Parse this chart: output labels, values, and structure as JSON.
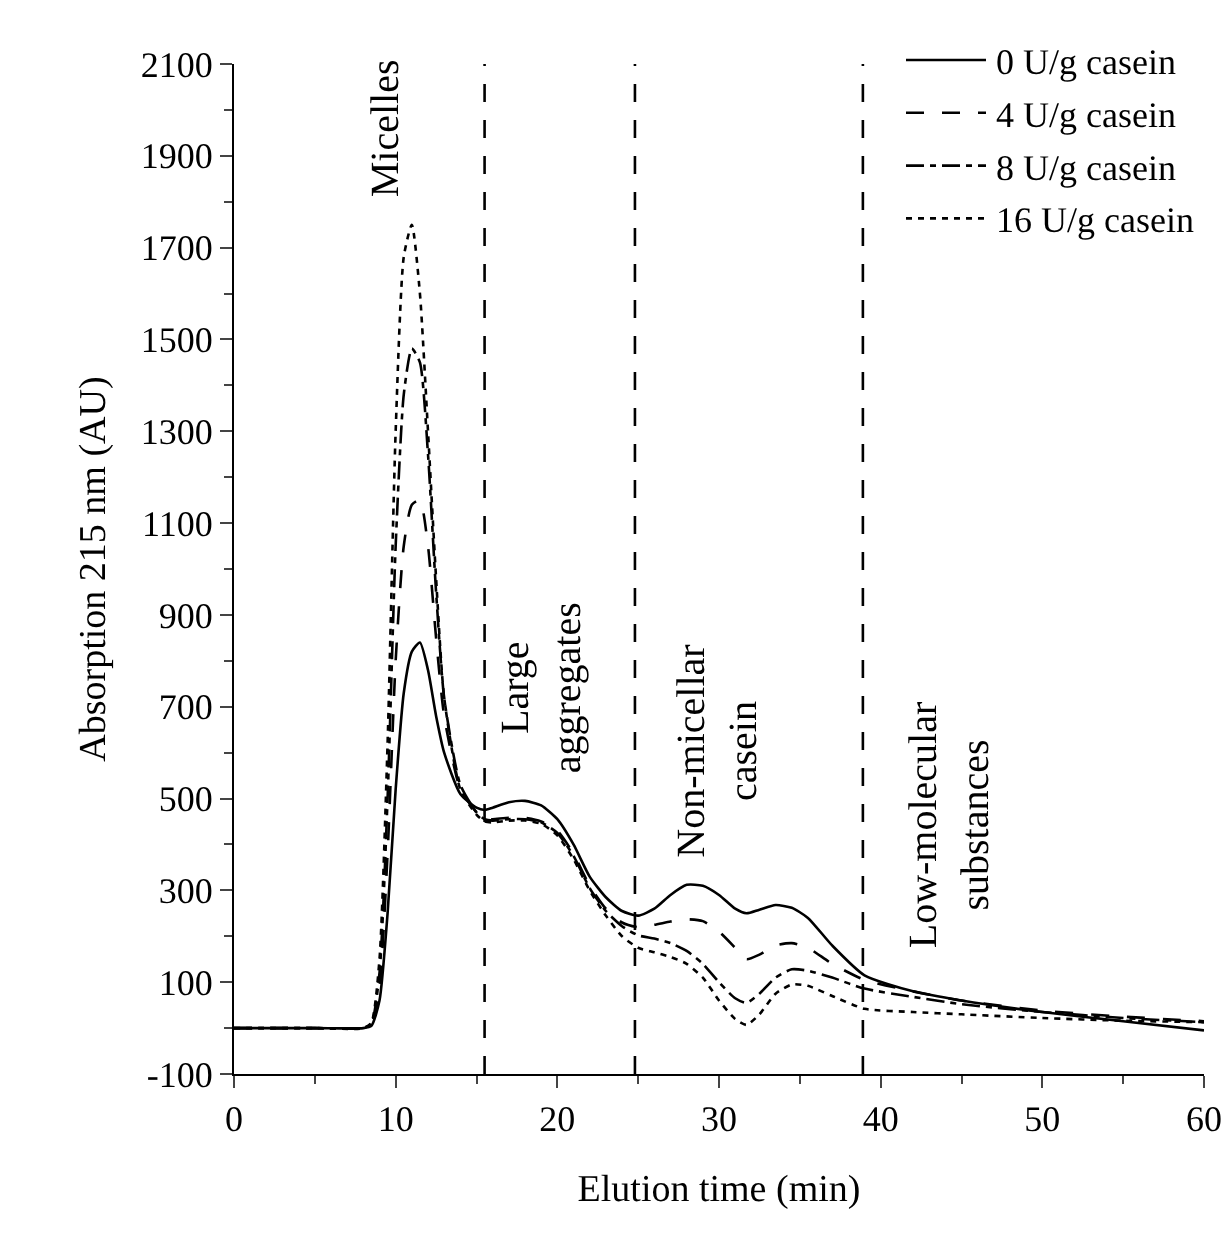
{
  "chart_data": {
    "type": "line",
    "xlabel": "Elution time (min)",
    "ylabel": "Absorption 215 nm (AU)",
    "x": [
      0,
      5,
      8,
      8.5,
      9,
      9.5,
      10,
      10.5,
      11,
      11.5,
      12,
      12.5,
      13,
      14,
      15,
      15.5,
      16,
      17,
      18,
      19,
      20,
      21,
      22,
      23,
      24,
      25,
      26,
      27,
      28,
      29,
      30,
      31,
      31.7,
      32.5,
      33.5,
      34.5,
      35.5,
      37,
      39,
      42,
      45,
      50,
      55,
      60
    ],
    "series": [
      {
        "name": "0 U/g casein",
        "color": "#000000",
        "line_style": "solid",
        "values": [
          0,
          0,
          0,
          5,
          60,
          250,
          520,
          730,
          820,
          840,
          780,
          680,
          600,
          510,
          480,
          475,
          480,
          492,
          495,
          485,
          455,
          400,
          330,
          285,
          255,
          245,
          260,
          290,
          312,
          310,
          290,
          260,
          250,
          258,
          268,
          262,
          240,
          180,
          115,
          80,
          60,
          35,
          15,
          -5
        ]
      },
      {
        "name": "4 U/g casein",
        "color": "#000000",
        "line_style": "dashed",
        "values": [
          0,
          0,
          0,
          8,
          90,
          380,
          800,
          1050,
          1140,
          1150,
          1050,
          850,
          680,
          520,
          470,
          455,
          455,
          458,
          458,
          450,
          430,
          380,
          310,
          260,
          230,
          220,
          225,
          232,
          237,
          233,
          210,
          175,
          150,
          160,
          180,
          185,
          175,
          140,
          105,
          80,
          60,
          38,
          25,
          15
        ]
      },
      {
        "name": "8 U/g casein",
        "color": "#000000",
        "line_style": "dashdot",
        "values": [
          0,
          0,
          0,
          10,
          120,
          500,
          1050,
          1380,
          1480,
          1450,
          1250,
          950,
          720,
          530,
          470,
          455,
          452,
          455,
          455,
          448,
          425,
          375,
          305,
          255,
          222,
          202,
          195,
          185,
          168,
          140,
          100,
          65,
          55,
          75,
          110,
          128,
          125,
          110,
          86,
          68,
          52,
          35,
          22,
          13
        ]
      },
      {
        "name": "16 U/g casein",
        "color": "#000000",
        "line_style": "dotted",
        "values": [
          0,
          0,
          0,
          12,
          150,
          620,
          1300,
          1680,
          1750,
          1600,
          1300,
          980,
          720,
          520,
          465,
          450,
          448,
          452,
          452,
          445,
          420,
          368,
          300,
          245,
          200,
          175,
          165,
          155,
          140,
          110,
          60,
          20,
          7,
          30,
          75,
          95,
          92,
          70,
          42,
          35,
          30,
          22,
          16,
          13
        ]
      }
    ],
    "xlim": [
      0,
      60
    ],
    "xticks": [
      0,
      10,
      20,
      30,
      40,
      50,
      60
    ],
    "ylim": [
      -100,
      2100
    ],
    "yticks": [
      -100,
      100,
      300,
      500,
      700,
      900,
      1100,
      1300,
      1500,
      1700,
      1900,
      2100
    ],
    "ref_lines": [
      {
        "axis": "x",
        "value": 15.5,
        "line_style": "dashed",
        "color": "#000000"
      },
      {
        "axis": "x",
        "value": 24.8,
        "line_style": "dashed",
        "color": "#000000"
      },
      {
        "axis": "x",
        "value": 38.9,
        "line_style": "dashed",
        "color": "#000000"
      }
    ],
    "annotations": [
      "Micelles",
      "Large\naggregates",
      "Non-micellar\ncasein",
      "Low-molecular\nsubstances"
    ],
    "grid": false,
    "legend": "top right",
    "marker": "none"
  }
}
